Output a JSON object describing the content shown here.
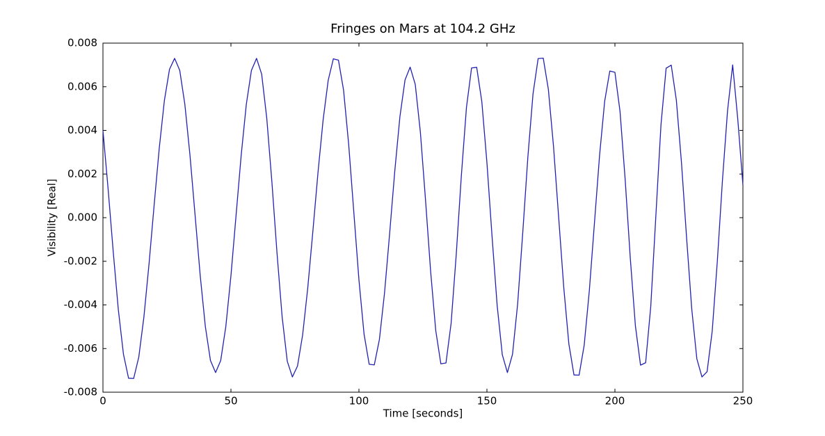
{
  "chart_data": {
    "type": "line",
    "title": "Fringes on Mars at 104.2 GHz",
    "x_label": "Time [seconds]",
    "y_label": "Visibility [Real]",
    "color": "#2020b0",
    "xlim": [
      0,
      250
    ],
    "xticks": [
      0,
      50,
      100,
      150,
      200,
      250
    ],
    "ylim": [
      -0.008,
      0.008
    ],
    "yticks": [
      -0.008,
      -0.006,
      -0.004,
      -0.002,
      {
        "value": 0,
        "label": "0.000"
      },
      0.002,
      0.004,
      0.006,
      0.008
    ],
    "grid": false,
    "x": [
      0,
      2,
      4,
      6,
      8,
      10,
      12,
      14,
      16,
      18,
      20,
      22,
      24,
      26,
      28,
      30,
      32,
      34,
      36,
      38,
      40,
      42,
      44,
      46,
      48,
      50,
      52,
      54,
      56,
      58,
      60,
      62,
      64,
      66,
      68,
      70,
      72,
      74,
      76,
      78,
      80,
      82,
      84,
      86,
      88,
      90,
      92,
      94,
      96,
      98,
      100,
      102,
      104,
      106,
      108,
      110,
      112,
      114,
      116,
      118,
      120,
      122,
      124,
      126,
      128,
      130,
      132,
      134,
      136,
      138,
      140,
      142,
      144,
      146,
      148,
      150,
      152,
      154,
      156,
      158,
      160,
      162,
      164,
      166,
      168,
      170,
      172,
      174,
      176,
      178,
      180,
      182,
      184,
      186,
      188,
      190,
      192,
      194,
      196,
      198,
      200,
      202,
      204,
      206,
      208,
      210,
      212,
      214,
      216,
      218,
      220,
      222,
      224,
      226,
      228,
      230,
      232,
      234,
      236,
      238,
      240,
      242,
      244,
      246,
      248,
      250
    ],
    "values": [
      0.004,
      0.00134,
      -0.00154,
      -0.00421,
      -0.00625,
      -0.00736,
      -0.00737,
      -0.00639,
      -0.00455,
      -0.00212,
      0.00058,
      0.00319,
      0.00537,
      0.0068,
      0.0073,
      0.00675,
      0.00519,
      0.00286,
      0.0001,
      -0.00266,
      -0.00499,
      -0.00655,
      -0.0071,
      -0.00655,
      -0.00499,
      -0.00266,
      0.0001,
      0.00286,
      0.00519,
      0.00675,
      0.0073,
      0.00658,
      0.00455,
      0.00163,
      -0.00163,
      -0.00455,
      -0.00658,
      -0.0073,
      -0.0068,
      -0.00538,
      -0.00323,
      -0.00063,
      0.00206,
      0.00447,
      0.0063,
      0.00728,
      0.00722,
      0.00584,
      0.00335,
      0.00025,
      -0.00285,
      -0.00534,
      -0.00672,
      -0.00675,
      -0.00558,
      -0.00345,
      -0.00072,
      0.00213,
      0.00462,
      0.00631,
      0.0069,
      0.00611,
      0.00392,
      0.00083,
      -0.00245,
      -0.00517,
      -0.0067,
      -0.00666,
      -0.00485,
      -0.00171,
      0.00191,
      0.00505,
      0.00686,
      0.00689,
      0.00532,
      0.00252,
      -0.00086,
      -0.00403,
      -0.00628,
      -0.0071,
      -0.00626,
      -0.00395,
      -0.00068,
      0.00279,
      0.00567,
      0.00729,
      0.00731,
      0.00588,
      0.00328,
      5e-05,
      -0.00318,
      -0.00578,
      -0.00721,
      -0.00722,
      -0.00584,
      -0.00335,
      -0.00025,
      0.00285,
      0.00534,
      0.00672,
      0.00666,
      0.00486,
      0.00175,
      -0.00185,
      -0.00496,
      -0.00676,
      -0.00665,
      -0.00407,
      0.0001,
      0.00427,
      0.00685,
      0.00699,
      0.00538,
      0.00252,
      -0.00093,
      -0.00417,
      -0.00647,
      -0.0073,
      -0.00706,
      -0.00521,
      -0.002,
      0.0017,
      0.00491,
      0.007,
      0.0045,
      0.0015
    ]
  }
}
